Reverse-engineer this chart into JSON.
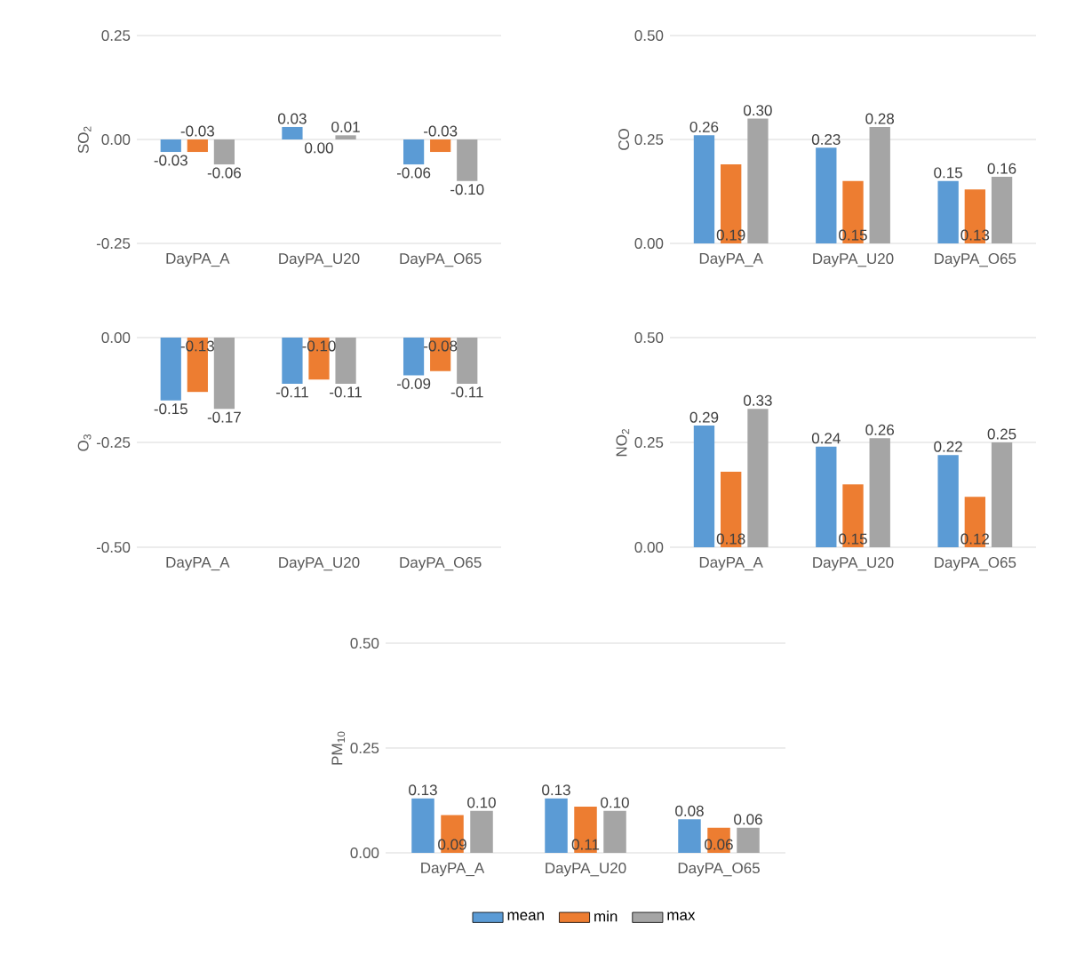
{
  "chart_data": [
    {
      "type": "bar",
      "ylabel": "SO$_{2}$",
      "categories": [
        "DayPA_A",
        "DayPA_U20",
        "DayPA_O65"
      ],
      "series": [
        {
          "color": "#5b9bd5",
          "values": [
            -0.03,
            0.03,
            -0.06
          ],
          "value_labels": [
            "-0.03",
            "0.03",
            "-0.06"
          ]
        },
        {
          "color": "#ed7d31",
          "values": [
            -0.03,
            0.0,
            -0.03
          ],
          "value_labels": [
            "-0.03",
            "0.00",
            "-0.03"
          ]
        },
        {
          "color": "#a5a5a5",
          "values": [
            -0.06,
            0.01,
            -0.1
          ],
          "value_labels": [
            "-0.06",
            "0.01",
            "-0.10"
          ]
        }
      ],
      "ylim": [
        -0.25,
        0.25
      ],
      "yticks": [
        {
          "value": -0.25,
          "label": "-0.25"
        },
        {
          "value": 0,
          "label": "0.00"
        },
        {
          "value": 0.25,
          "label": "0.25"
        }
      ],
      "grid": "y"
    },
    {
      "type": "bar",
      "ylabel": "CO",
      "categories": [
        "DayPA_A",
        "DayPA_U20",
        "DayPA_O65"
      ],
      "series": [
        {
          "color": "#5b9bd5",
          "values": [
            0.26,
            0.23,
            0.15
          ],
          "value_labels": [
            "0.26",
            "0.23",
            "0.15"
          ]
        },
        {
          "color": "#ed7d31",
          "values": [
            0.19,
            0.15,
            0.13
          ],
          "value_labels": [
            "0.19",
            "0.15",
            "0.13"
          ]
        },
        {
          "color": "#a5a5a5",
          "values": [
            0.3,
            0.28,
            0.16
          ],
          "value_labels": [
            "0.30",
            "0.28",
            "0.16"
          ]
        }
      ],
      "ylim": [
        0,
        0.5
      ],
      "yticks": [
        {
          "value": 0,
          "label": "0.00"
        },
        {
          "value": 0.25,
          "label": "0.25"
        },
        {
          "value": 0.5,
          "label": "0.50"
        }
      ],
      "grid": "y"
    },
    {
      "type": "bar",
      "ylabel": "O$_{3}$",
      "categories": [
        "DayPA_A",
        "DayPA_U20",
        "DayPA_O65"
      ],
      "series": [
        {
          "color": "#5b9bd5",
          "values": [
            -0.15,
            -0.11,
            -0.09
          ],
          "value_labels": [
            "-0.15",
            "-0.11",
            "-0.09"
          ]
        },
        {
          "color": "#ed7d31",
          "values": [
            -0.13,
            -0.1,
            -0.08
          ],
          "value_labels": [
            "-0.13",
            "-0.10",
            "-0.08"
          ]
        },
        {
          "color": "#a5a5a5",
          "values": [
            -0.17,
            -0.11,
            -0.11
          ],
          "value_labels": [
            "-0.17",
            "-0.11",
            "-0.11"
          ]
        }
      ],
      "ylim": [
        -0.5,
        0
      ],
      "yticks": [
        {
          "value": -0.5,
          "label": "-0.50"
        },
        {
          "value": -0.25,
          "label": "-0.25"
        },
        {
          "value": 0,
          "label": "0.00"
        }
      ],
      "grid": "y"
    },
    {
      "type": "bar",
      "ylabel": "NO$_{2}$",
      "categories": [
        "DayPA_A",
        "DayPA_U20",
        "DayPA_O65"
      ],
      "series": [
        {
          "color": "#5b9bd5",
          "values": [
            0.29,
            0.24,
            0.22
          ],
          "value_labels": [
            "0.29",
            "0.24",
            "0.22"
          ]
        },
        {
          "color": "#ed7d31",
          "values": [
            0.18,
            0.15,
            0.12
          ],
          "value_labels": [
            "0.18",
            "0.15",
            "0.12"
          ]
        },
        {
          "color": "#a5a5a5",
          "values": [
            0.33,
            0.26,
            0.25
          ],
          "value_labels": [
            "0.33",
            "0.26",
            "0.25"
          ]
        }
      ],
      "ylim": [
        0,
        0.5
      ],
      "yticks": [
        {
          "value": 0,
          "label": "0.00"
        },
        {
          "value": 0.25,
          "label": "0.25"
        },
        {
          "value": 0.5,
          "label": "0.50"
        }
      ],
      "grid": "y"
    },
    {
      "type": "bar",
      "ylabel": "PM$_{10}$",
      "categories": [
        "DayPA_A",
        "DayPA_U20",
        "DayPA_O65"
      ],
      "series": [
        {
          "name": "mean",
          "color": "#5b9bd5",
          "values": [
            0.13,
            0.13,
            0.08
          ],
          "value_labels": [
            "0.13",
            "0.13",
            "0.08"
          ]
        },
        {
          "name": "min",
          "color": "#ed7d31",
          "values": [
            0.09,
            0.11,
            0.06
          ],
          "value_labels": [
            "0.09",
            "0.11",
            "0.06"
          ]
        },
        {
          "name": "max",
          "color": "#a5a5a5",
          "values": [
            0.1,
            0.1,
            0.06
          ],
          "value_labels": [
            "0.10",
            "0.10",
            "0.06"
          ]
        }
      ],
      "ylim": [
        0,
        0.5
      ],
      "yticks": [
        {
          "value": 0,
          "label": "0.00"
        },
        {
          "value": 0.25,
          "label": "0.25"
        },
        {
          "value": 0.5,
          "label": "0.50"
        }
      ],
      "grid": "y",
      "legend": "bottom"
    }
  ]
}
